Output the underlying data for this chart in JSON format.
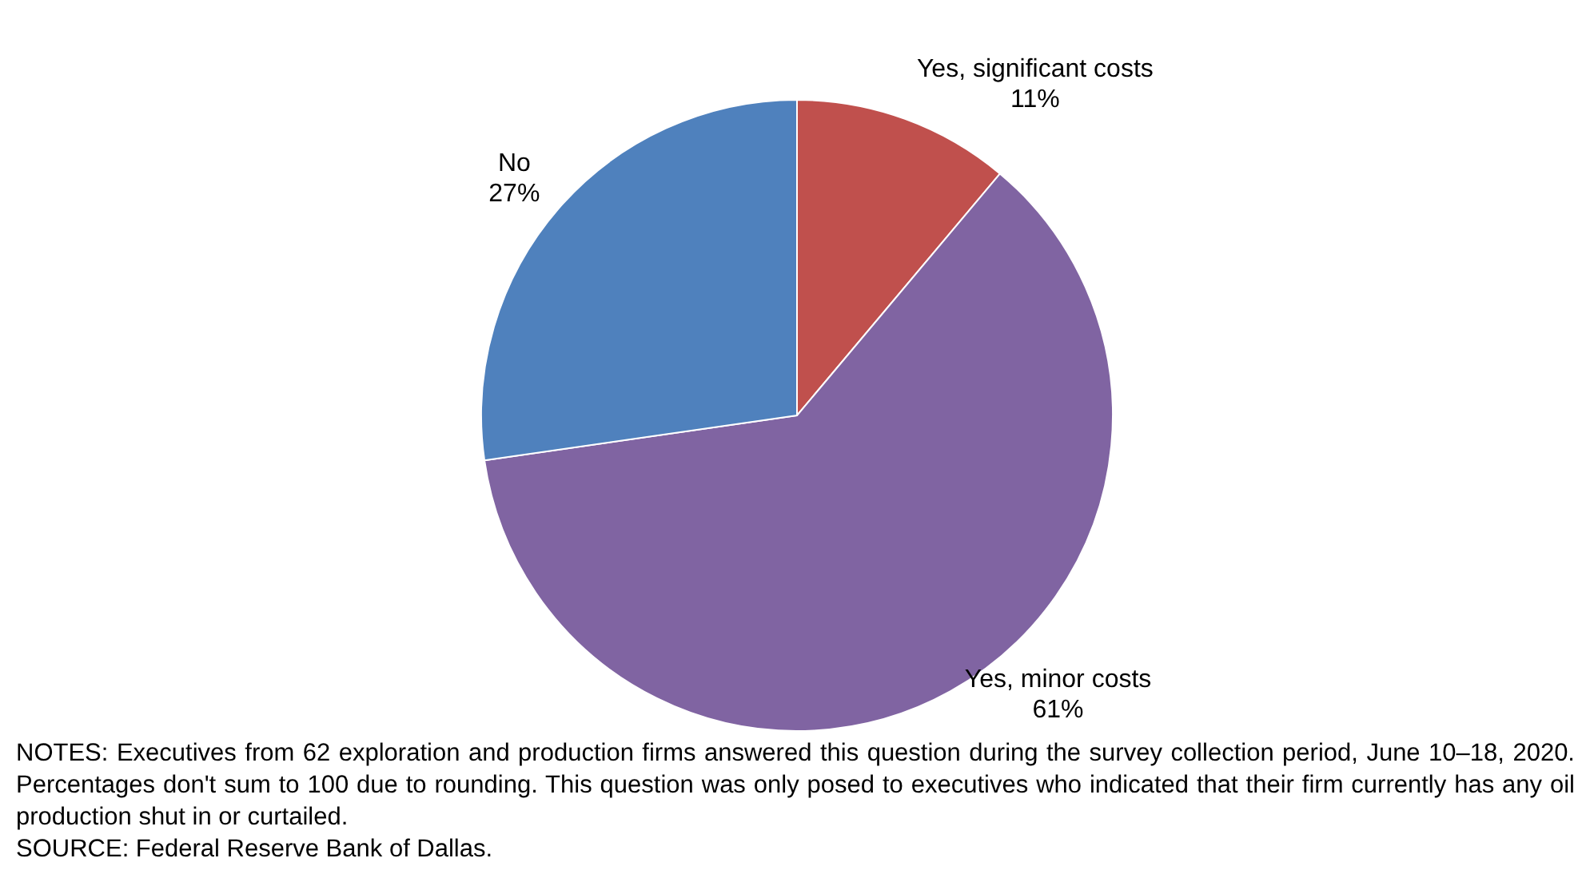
{
  "chart_data": {
    "type": "pie",
    "categories": [
      "Yes, significant costs",
      "Yes, minor costs",
      "No"
    ],
    "values": [
      11,
      61,
      27
    ],
    "colors": [
      "#c0504d",
      "#8064a2",
      "#4f81bd"
    ],
    "value_labels": [
      "11%",
      "61%",
      "27%"
    ],
    "legend": false,
    "annotations": [
      "NOTES: Executives from 62 exploration and production firms answered this question during the survey collection period, June 10–18, 2020. Percentages don't sum to 100 due to rounding. This question was only posed to executives who indicated that their firm currently has any oil production shut in or curtailed.",
      "SOURCE: Federal Reserve Bank of Dallas."
    ]
  }
}
